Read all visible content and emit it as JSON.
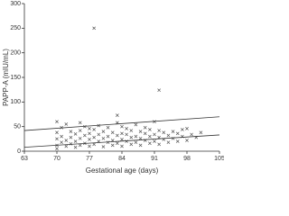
{
  "chart_data": {
    "type": "scatter",
    "x_label": "Gestational age (days)",
    "y_label": "PAPP-A (mIU/mL)",
    "xlim": [
      63,
      105
    ],
    "xticks": [
      63,
      70,
      77,
      84,
      91,
      98,
      105
    ],
    "ylim": [
      0,
      300
    ],
    "yticks": [
      0,
      50,
      100,
      150,
      200,
      250,
      300
    ],
    "color": "#555555",
    "x": [
      70,
      70,
      70,
      70,
      70,
      71,
      71,
      71,
      72,
      72,
      72,
      73,
      73,
      73,
      74,
      74,
      74,
      75,
      75,
      75,
      75,
      76,
      76,
      76,
      77,
      77,
      77,
      77,
      78,
      78,
      78,
      79,
      79,
      79,
      80,
      80,
      80,
      81,
      81,
      81,
      82,
      82,
      82,
      83,
      83,
      83,
      84,
      84,
      84,
      84,
      85,
      85,
      85,
      86,
      86,
      86,
      87,
      87,
      87,
      88,
      88,
      88,
      89,
      89,
      89,
      90,
      90,
      90,
      91,
      91,
      91,
      92,
      92,
      92,
      93,
      93,
      94,
      94,
      95,
      95,
      96,
      96,
      97,
      97,
      98,
      98,
      99,
      100,
      101,
      78,
      92,
      83
    ],
    "values": [
      12,
      25,
      38,
      60,
      5,
      18,
      30,
      48,
      10,
      22,
      55,
      15,
      28,
      40,
      8,
      20,
      35,
      12,
      26,
      42,
      58,
      16,
      32,
      50,
      10,
      24,
      36,
      46,
      14,
      28,
      44,
      20,
      34,
      52,
      9,
      26,
      40,
      18,
      30,
      48,
      12,
      22,
      38,
      16,
      32,
      58,
      10,
      24,
      36,
      50,
      20,
      34,
      46,
      14,
      28,
      42,
      18,
      30,
      54,
      12,
      26,
      40,
      22,
      36,
      48,
      16,
      30,
      44,
      20,
      34,
      60,
      14,
      28,
      42,
      24,
      38,
      18,
      32,
      26,
      40,
      20,
      36,
      30,
      44,
      22,
      46,
      34,
      28,
      38,
      250,
      124,
      73
    ],
    "lines": [
      {
        "x": [
          63,
          105
        ],
        "values": [
          8,
          33
        ],
        "color": "#333333"
      },
      {
        "x": [
          63,
          105
        ],
        "values": [
          42,
          70
        ],
        "color": "#333333"
      }
    ]
  }
}
